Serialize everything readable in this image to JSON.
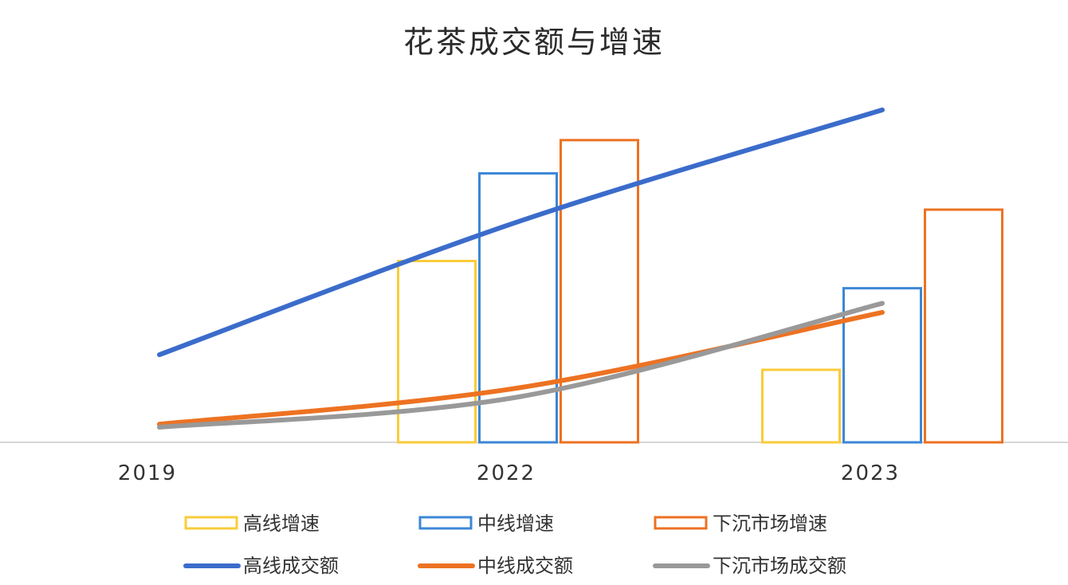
{
  "chart_data": {
    "type": "bar",
    "title": "花茶成交额与增速",
    "categories": [
      "2019",
      "2022",
      "2023"
    ],
    "bar_series": [
      {
        "name": "高线增速",
        "color": "#F9CC3A",
        "values": [
          null,
          0.6,
          0.24
        ]
      },
      {
        "name": "中线增速",
        "color": "#3C87D6",
        "values": [
          null,
          0.89,
          0.51
        ]
      },
      {
        "name": "下沉市场增速",
        "color": "#ED7222",
        "values": [
          null,
          1.0,
          0.77
        ]
      }
    ],
    "line_series": [
      {
        "name": "高线成交额",
        "color": "#3B6CCB",
        "values": [
          0.29,
          0.73,
          1.1
        ]
      },
      {
        "name": "中线成交额",
        "color": "#ED7222",
        "values": [
          0.06,
          0.18,
          0.43
        ]
      },
      {
        "name": "下沉市场成交额",
        "color": "#999999",
        "values": [
          0.05,
          0.15,
          0.46
        ]
      }
    ],
    "ylim": [
      0,
      1.2
    ],
    "grid": false,
    "legend_position": "bottom"
  }
}
